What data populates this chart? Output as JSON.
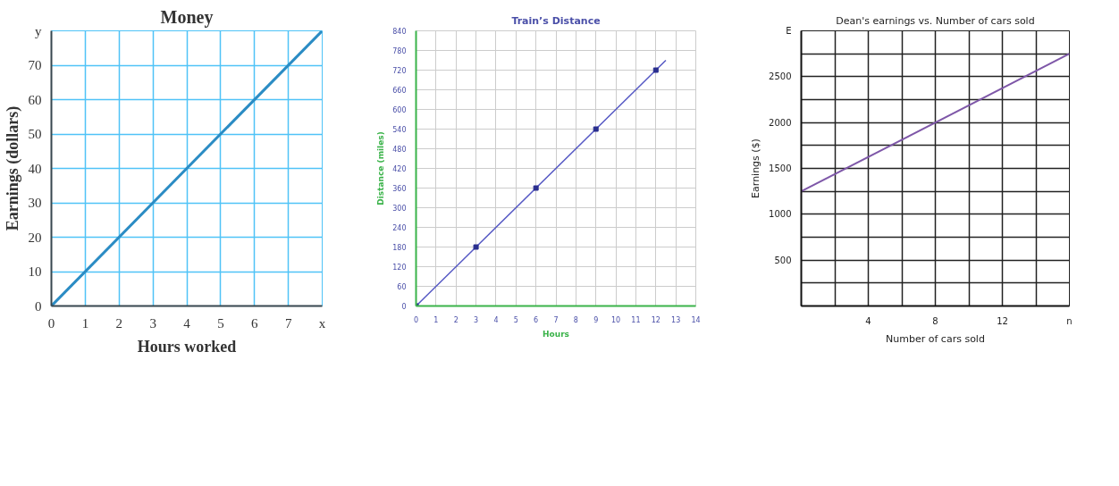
{
  "chart_data": [
    {
      "type": "line",
      "title": "Money",
      "xlabel": "Hours worked",
      "ylabel": "Earnings (dollars)",
      "xlim": [
        0,
        8
      ],
      "ylim": [
        0,
        80
      ],
      "grid": true,
      "xticks": [
        0,
        1,
        2,
        3,
        4,
        5,
        6,
        7,
        {
          "value": 8,
          "label": null
        }
      ],
      "yticks": [
        0,
        10,
        20,
        30,
        40,
        50,
        60,
        70,
        {
          "value": 80,
          "label": null
        }
      ],
      "annotations": [
        "x",
        "y"
      ],
      "series": [
        {
          "color": "#2b8cc4",
          "x": [
            0,
            8
          ],
          "values": [
            0,
            80
          ]
        }
      ]
    },
    {
      "type": "line",
      "title": "Train’s Distance",
      "xlabel": "Hours",
      "ylabel": "Distance (miles)",
      "xlim": [
        0,
        14
      ],
      "ylim": [
        0,
        840
      ],
      "grid": true,
      "xticks": [
        0,
        1,
        2,
        3,
        4,
        5,
        6,
        7,
        8,
        9,
        10,
        11,
        12,
        13,
        14
      ],
      "yticks": [
        0,
        60,
        120,
        180,
        240,
        300,
        360,
        420,
        480,
        540,
        600,
        660,
        720,
        780,
        840
      ],
      "series": [
        {
          "color": "#5558c4",
          "x": [
            0,
            12.5
          ],
          "values": [
            0,
            750
          ]
        },
        {
          "type": "scatter",
          "marker": "square",
          "color": "#2a2f8f",
          "x": [
            0,
            3,
            6,
            9,
            12
          ],
          "values": [
            0,
            180,
            360,
            540,
            720
          ]
        }
      ]
    },
    {
      "type": "line",
      "title": "Dean's earnings vs. Number of cars sold",
      "xlabel": "Number of cars sold",
      "ylabel": "Earnings ($)",
      "xlim": [
        0,
        16
      ],
      "ylim": [
        0,
        3000
      ],
      "grid": true,
      "xticks": [
        {
          "value": 0,
          "label": null
        },
        {
          "value": 2,
          "label": null
        },
        4,
        {
          "value": 6,
          "label": null
        },
        8,
        {
          "value": 10,
          "label": null
        },
        12,
        {
          "value": 14,
          "label": null
        },
        {
          "value": 16,
          "label": null
        }
      ],
      "yticks": [
        {
          "value": 0,
          "label": null
        },
        {
          "value": 250,
          "label": null
        },
        500,
        {
          "value": 750,
          "label": null
        },
        1000,
        {
          "value": 1250,
          "label": null
        },
        1500,
        {
          "value": 1750,
          "label": null
        },
        2000,
        {
          "value": 2250,
          "label": null
        },
        2500,
        {
          "value": 2750,
          "label": null
        },
        {
          "value": 3000,
          "label": null
        }
      ],
      "annotations": [
        "n",
        "E"
      ],
      "series": [
        {
          "color": "#7e57a8",
          "x": [
            0,
            16
          ],
          "values": [
            1250,
            2750
          ]
        }
      ]
    }
  ]
}
